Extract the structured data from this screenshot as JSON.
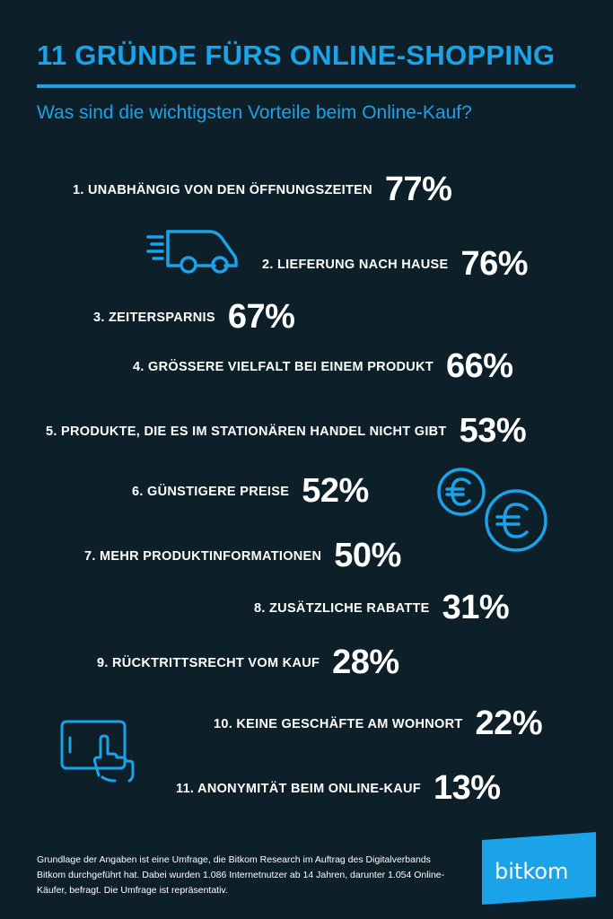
{
  "header": {
    "title": "11 GRÜNDE FÜRS ONLINE-SHOPPING",
    "subtitle": "Was sind die wichtigsten Vorteile beim Online-Kauf?"
  },
  "items": [
    {
      "label": "1. UNABHÄNGIG VON DEN ÖFFNUNGSZEITEN",
      "value": "77%"
    },
    {
      "label": "2. LIEFERUNG NACH HAUSE",
      "value": "76%"
    },
    {
      "label": "3. ZEITERSPARNIS",
      "value": "67%"
    },
    {
      "label": "4. GRÖSSERE VIELFALT BEI EINEM PRODUKT",
      "value": "66%"
    },
    {
      "label": "5. PRODUKTE, DIE ES IM STATIONÄREN HANDEL NICHT GIBT",
      "value": "53%"
    },
    {
      "label": "6. GÜNSTIGERE PREISE",
      "value": "52%"
    },
    {
      "label": "7. MEHR PRODUKTINFORMATIONEN",
      "value": "50%"
    },
    {
      "label": "8. ZUSÄTZLICHE RABATTE",
      "value": "31%"
    },
    {
      "label": "9. RÜCKTRITTSRECHT VOM KAUF",
      "value": "28%"
    },
    {
      "label": "10. KEINE GESCHÄFTE AM WOHNORT",
      "value": "22%"
    },
    {
      "label": "11. ANONYMITÄT BEIM ONLINE-KAUF",
      "value": "13%"
    }
  ],
  "footer": {
    "note": "Grundlage der Angaben ist eine Umfrage, die Bitkom Research im Auftrag des Digitalverbands Bitkom durchgeführt hat. Dabei wurden 1.086 Internetnutzer ab 14 Jahren, darunter 1.054 Online-Käufer, befragt. Die Umfrage ist repräsentativ."
  },
  "logo": {
    "text": "bitkom"
  },
  "icons": [
    "delivery-van-icon",
    "euro-coin-icon",
    "euro-coin-icon",
    "tablet-touch-icon"
  ],
  "colors": {
    "background": "#0d1f28",
    "accent": "#1aa3e8",
    "text": "#ffffff"
  }
}
